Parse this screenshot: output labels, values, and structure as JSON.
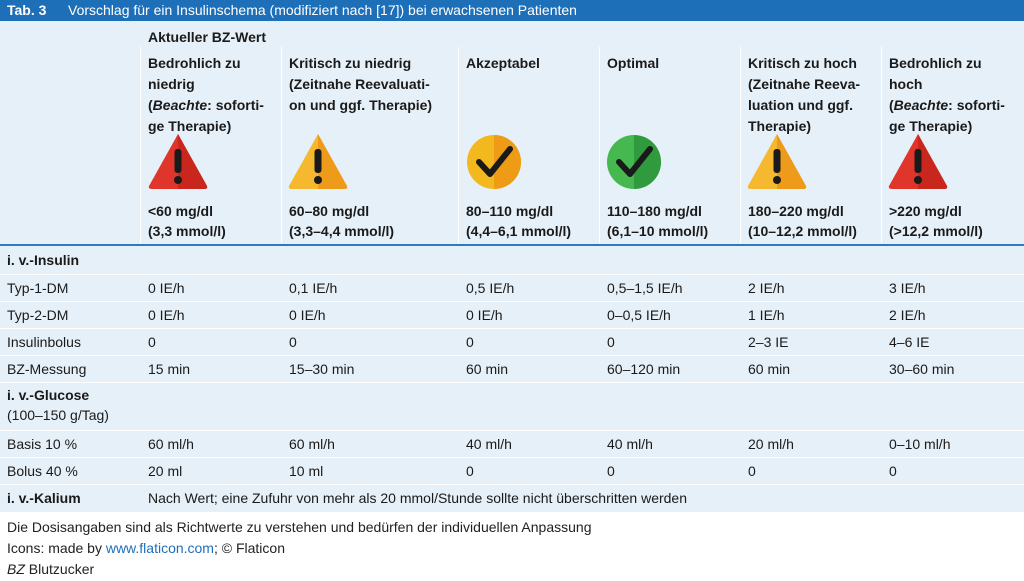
{
  "table": {
    "number": "Tab. 3",
    "title": "Vorschlag für ein Insulinschema (modifiziert nach [17]) bei erwachsenen Patienten",
    "header_group": "Aktueller BZ-Wert",
    "columns": [
      {
        "l1": "Bedrohlich zu",
        "l2": "niedrig",
        "l3_pre": "(",
        "l3_em": "Beachte",
        "l3_post": ": soforti-",
        "l4": "ge Therapie)",
        "icon": "warning-red-icon",
        "range1": "<60 mg/dl",
        "range2": "(3,3 mmol/l)"
      },
      {
        "l1": "Kritisch zu niedrig",
        "l2": "(Zeitnahe Reevaluati-",
        "l3": "on und ggf. Therapie)",
        "icon": "warning-orange-icon",
        "range1": "60–80 mg/dl",
        "range2": "(3,3–4,4 mmol/l)"
      },
      {
        "l1": "Akzeptabel",
        "icon": "check-yellow-icon",
        "range1": "80–110 mg/dl",
        "range2": "(4,4–6,1 mmol/l)"
      },
      {
        "l1": "Optimal",
        "icon": "check-green-icon",
        "range1": "110–180 mg/dl",
        "range2": "(6,1–10 mmol/l)"
      },
      {
        "l1": "Kritisch zu hoch",
        "l2": "(Zeitnahe Reeva-",
        "l3": "luation und ggf.",
        "l4": "Therapie)",
        "icon": "warning-orange-icon",
        "range1": "180–220 mg/dl",
        "range2": "(10–12,2 mmol/l)"
      },
      {
        "l1": "Bedrohlich zu",
        "l2": "hoch",
        "l3_pre": "(",
        "l3_em": "Beachte",
        "l3_post": ": soforti-",
        "l4": "ge Therapie)",
        "icon": "warning-red-icon",
        "range1": ">220 mg/dl",
        "range2": "(>12,2 mmol/l)"
      }
    ],
    "sections": {
      "insulin": "i. v.-Insulin",
      "glucose": "i. v.-Glucose",
      "glucose_sub": "(100–150 g/Tag)",
      "kalium": "i. v.-Kalium",
      "kalium_text": "Nach Wert; eine Zufuhr von mehr als 20 mmol/Stunde sollte nicht überschritten werden"
    },
    "insulin_rows": [
      {
        "label": "Typ-1-DM",
        "cells": [
          "0 IE/h",
          "0,1 IE/h",
          "0,5 IE/h",
          "0,5–1,5 IE/h",
          "2 IE/h",
          "3 IE/h"
        ]
      },
      {
        "label": "Typ-2-DM",
        "cells": [
          "0 IE/h",
          "0 IE/h",
          "0 IE/h",
          "0–0,5 IE/h",
          "1 IE/h",
          "2 IE/h"
        ]
      },
      {
        "label": "Insulinbolus",
        "cells": [
          "0",
          "0",
          "0",
          "0",
          "2–3 IE",
          "4–6 IE"
        ]
      },
      {
        "label": "BZ-Messung",
        "cells": [
          "15 min",
          "15–30 min",
          "60 min",
          "60–120 min",
          "60 min",
          "30–60 min"
        ]
      }
    ],
    "glucose_rows": [
      {
        "label": "Basis 10 %",
        "cells": [
          "60 ml/h",
          "60 ml/h",
          "40 ml/h",
          "40 ml/h",
          "20 ml/h",
          "0–10 ml/h"
        ]
      },
      {
        "label": "Bolus 40 %",
        "cells": [
          "20 ml",
          "10 ml",
          "0",
          "0",
          "0",
          "0"
        ]
      }
    ]
  },
  "footer": {
    "line1": "Die Dosisangaben sind als Richtwerte zu verstehen und bedürfen der individuellen Anpassung",
    "line2_pre": "Icons: made by ",
    "line2_link": "www.flaticon.com",
    "line2_post": "; © Flaticon",
    "line3_abbr": "BZ",
    "line3_text": " Blutzucker"
  },
  "colors": {
    "header_blue": "#1d6fb8",
    "table_bg": "#e6f0f8",
    "warn_red": "#e0352b",
    "warn_orange": "#f2a51d",
    "check_yellow": "#f3b81d",
    "check_green": "#3aa84a"
  }
}
